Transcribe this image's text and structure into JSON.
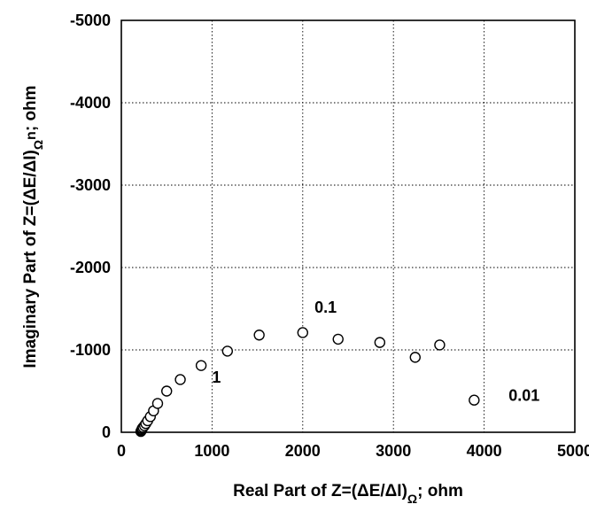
{
  "chart_data": {
    "type": "scatter",
    "title": "",
    "xlabel": {
      "main": "Real Part of Z=(ΔE/ΔI)",
      "subscript": "Ω",
      "suffix": "; ohm"
    },
    "ylabel": {
      "main": "Imaginary Part of Z=(ΔE/ΔI)",
      "subscript": "Ω",
      "suffix": "; ohm",
      "sup": "n"
    },
    "xlim": [
      0,
      5000
    ],
    "ylim": [
      0,
      -5000
    ],
    "x_ticks": [
      "0",
      "1000",
      "2000",
      "3000",
      "4000",
      "5000"
    ],
    "y_ticks": [
      "0",
      "-1000",
      "-2000",
      "-3000",
      "-4000",
      "-5000"
    ],
    "grid": true,
    "marker": "open-circle",
    "series": [
      {
        "x": [
          215,
          220,
          225,
          230,
          240,
          255,
          270,
          290,
          320,
          355,
          400,
          500,
          650,
          880,
          1170,
          1520,
          2000,
          2390,
          2850,
          3240,
          3510,
          3890
        ],
        "y": [
          -10,
          -20,
          -30,
          -45,
          -60,
          -80,
          -105,
          -140,
          -190,
          -260,
          -350,
          -500,
          -640,
          -810,
          -985,
          -1180,
          -1210,
          -1130,
          -1090,
          -910,
          -1060,
          -390
        ]
      }
    ],
    "annotations": [
      {
        "text": "1",
        "x": 1000,
        "y": -600
      },
      {
        "text": "0.1",
        "x": 2130,
        "y": -1450
      },
      {
        "text": "0.01",
        "x": 4270,
        "y": -380
      }
    ]
  }
}
